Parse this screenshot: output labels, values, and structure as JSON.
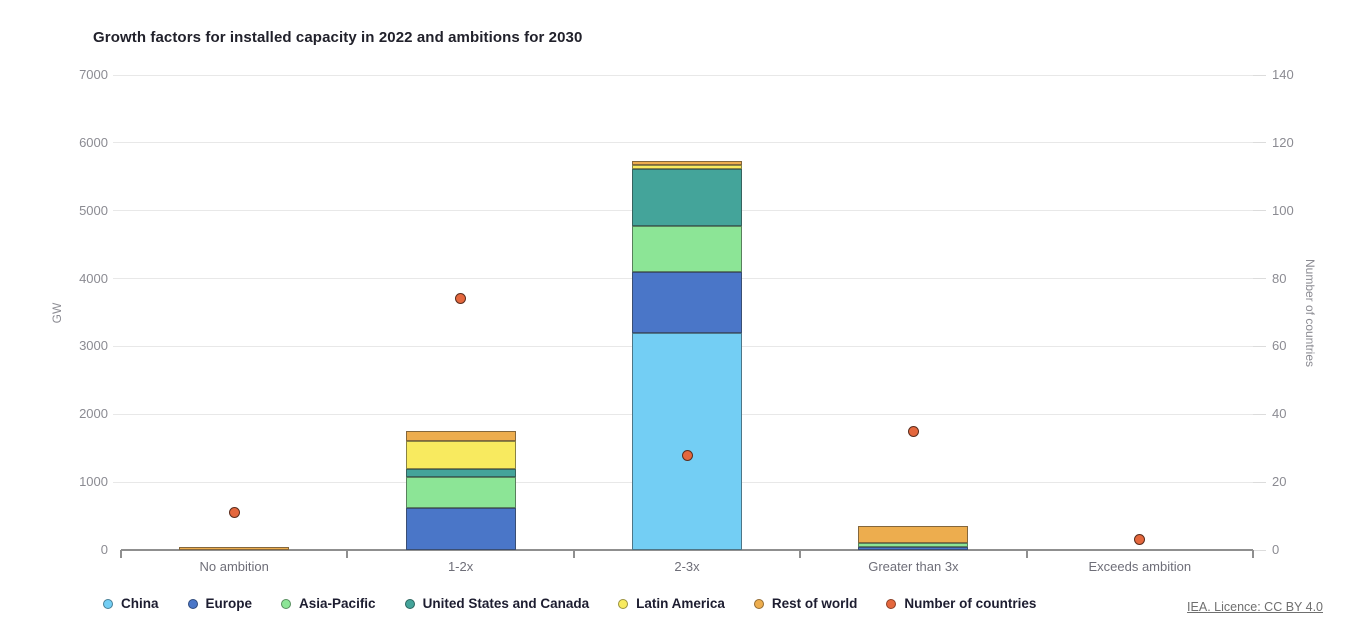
{
  "chart_data": {
    "type": "bar",
    "subtype": "stacked-column-with-scatter",
    "title": "Growth factors for installed capacity in 2022 and ambitions for 2030",
    "categories": [
      "No ambition",
      "1-2x",
      "2-3x",
      "Greater than 3x",
      "Exceeds ambition"
    ],
    "series": [
      {
        "name": "China",
        "color": "#73CEF4",
        "values": [
          0,
          0,
          3200,
          0,
          0
        ]
      },
      {
        "name": "Europe",
        "color": "#4A76C8",
        "values": [
          0,
          620,
          890,
          50,
          0
        ]
      },
      {
        "name": "Asia-Pacific",
        "color": "#8CE596",
        "values": [
          0,
          460,
          690,
          60,
          0
        ]
      },
      {
        "name": "United States and Canada",
        "color": "#44A49A",
        "values": [
          0,
          120,
          840,
          0,
          0
        ]
      },
      {
        "name": "Latin America",
        "color": "#F8EA5F",
        "values": [
          0,
          410,
          60,
          0,
          0
        ]
      },
      {
        "name": "Rest of world",
        "color": "#EDAD4E",
        "values": [
          50,
          150,
          60,
          250,
          0
        ]
      }
    ],
    "scatter_series": {
      "name": "Number of countries",
      "color": "#E4673D",
      "border_color": "#5B2D1D",
      "values": [
        11,
        74,
        28,
        35,
        3
      ]
    },
    "stack_totals_gw": [
      50,
      1760,
      5740,
      360,
      0
    ],
    "left_axis": {
      "label": "GW",
      "min": 0,
      "max": 7000,
      "step": 1000,
      "ticks": [
        0,
        1000,
        2000,
        3000,
        4000,
        5000,
        6000,
        7000
      ]
    },
    "right_axis": {
      "label": "Number of countries",
      "min": 0,
      "max": 140,
      "step": 20,
      "ticks": [
        0,
        20,
        40,
        60,
        80,
        100,
        120,
        140
      ]
    },
    "grid": true,
    "legend_position": "bottom"
  },
  "footer": {
    "licence_link": "IEA. Licence: CC BY 4.0"
  }
}
